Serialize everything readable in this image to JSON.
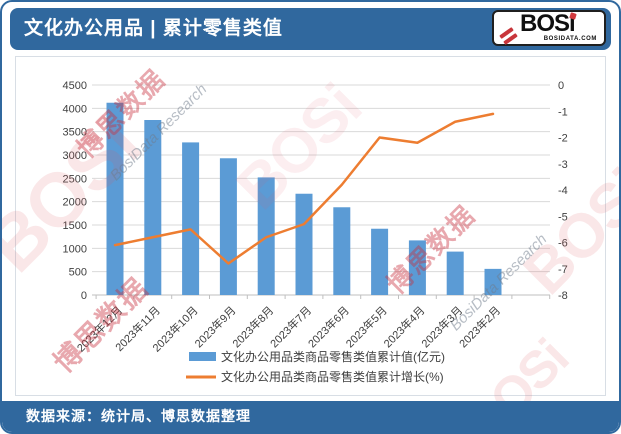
{
  "header": {
    "title": "文化办公用品 | 累计零售类值",
    "logo": {
      "bos": "BOS",
      "i": "i",
      "site": "BOSIDATA.COM"
    }
  },
  "footer": {
    "source": "数据来源：统计局、博思数据整理"
  },
  "watermark": {
    "cn": "博思数据",
    "en": "BosiData Research",
    "glyph": "BOSi"
  },
  "colors": {
    "theme_blue": "#30689E",
    "bar": "#5B9BD5",
    "line": "#ED7D31",
    "grid": "#D9D9D9",
    "axis_line": "#BFBFBF",
    "axis_text": "#404040"
  },
  "chart_data": {
    "type": "combo",
    "categories": [
      "2023年12月",
      "2023年11月",
      "2023年10月",
      "2023年9月",
      "2023年8月",
      "2023年7月",
      "2023年6月",
      "2023年5月",
      "2023年4月",
      "2023年3月",
      "2023年2月"
    ],
    "series": [
      {
        "name": "文化办公用品类商品零售类值累计值(亿元)",
        "type": "bar",
        "axis": "left",
        "values": [
          4120,
          3750,
          3270,
          2930,
          2520,
          2170,
          1880,
          1420,
          1170,
          930,
          560
        ]
      },
      {
        "name": "文化办公用品类商品零售类值累计增长(%)",
        "type": "line",
        "axis": "right",
        "values": [
          -6.1,
          -5.8,
          -5.5,
          -6.8,
          -5.8,
          -5.3,
          -3.8,
          -2.0,
          -2.2,
          -1.4,
          -1.1
        ]
      }
    ],
    "left_axis": {
      "min": 0,
      "max": 4500,
      "step": 500
    },
    "right_axis": {
      "min": -8,
      "max": 0,
      "step": 1
    },
    "grid": true,
    "legend_position": "bottom"
  }
}
